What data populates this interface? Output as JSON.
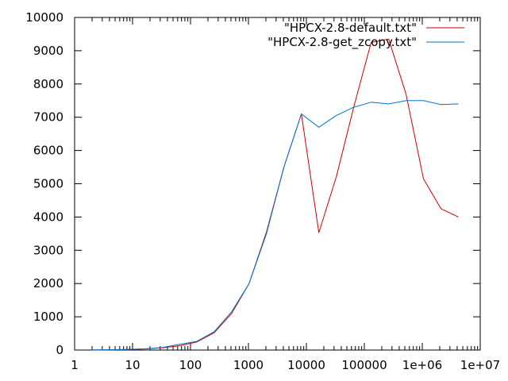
{
  "chart_data": {
    "type": "line",
    "title": "",
    "xlabel": "",
    "ylabel": "",
    "xscale": "log",
    "xlim": [
      1,
      10000000
    ],
    "ylim": [
      0,
      10000
    ],
    "grid": false,
    "legend_position": "top-right",
    "x_tick_labels": [
      "1",
      "10",
      "100",
      "1000",
      "10000",
      "100000",
      "1e+06",
      "1e+07"
    ],
    "y_tick_labels": [
      "0",
      "1000",
      "2000",
      "3000",
      "4000",
      "5000",
      "6000",
      "7000",
      "8000",
      "9000",
      "10000"
    ],
    "x_tick_values": [
      1,
      10,
      100,
      1000,
      10000,
      100000,
      1000000,
      10000000
    ],
    "y_tick_values": [
      0,
      1000,
      2000,
      3000,
      4000,
      5000,
      6000,
      7000,
      8000,
      9000,
      10000
    ],
    "series": [
      {
        "name": "\"HPCX-2.8-default.txt\"",
        "color": "#cc0000",
        "x": [
          2,
          4,
          8,
          16,
          32,
          64,
          128,
          256,
          512,
          1024,
          2048,
          4096,
          8192,
          16384,
          32768,
          65536,
          131072,
          262144,
          524288,
          1048576,
          2097152,
          4194304
        ],
        "y": [
          3,
          8,
          16,
          33,
          65,
          130,
          240,
          520,
          1100,
          2000,
          3550,
          5500,
          7100,
          3530,
          5200,
          7300,
          9250,
          9350,
          7700,
          5150,
          4250,
          4000
        ]
      },
      {
        "name": "\"HPCX-2.8-get_zcopy.txt\"",
        "color": "#0072c6",
        "x": [
          2,
          4,
          8,
          16,
          32,
          64,
          128,
          256,
          512,
          1024,
          2048,
          4096,
          8192,
          16384,
          32768,
          65536,
          131072,
          262144,
          524288,
          1048576,
          2097152,
          4194304
        ],
        "y": [
          4,
          9,
          17,
          35,
          75,
          170,
          260,
          550,
          1150,
          2000,
          3500,
          5500,
          7100,
          6700,
          7050,
          7300,
          7450,
          7400,
          7500,
          7500,
          7380,
          7400
        ]
      }
    ]
  }
}
